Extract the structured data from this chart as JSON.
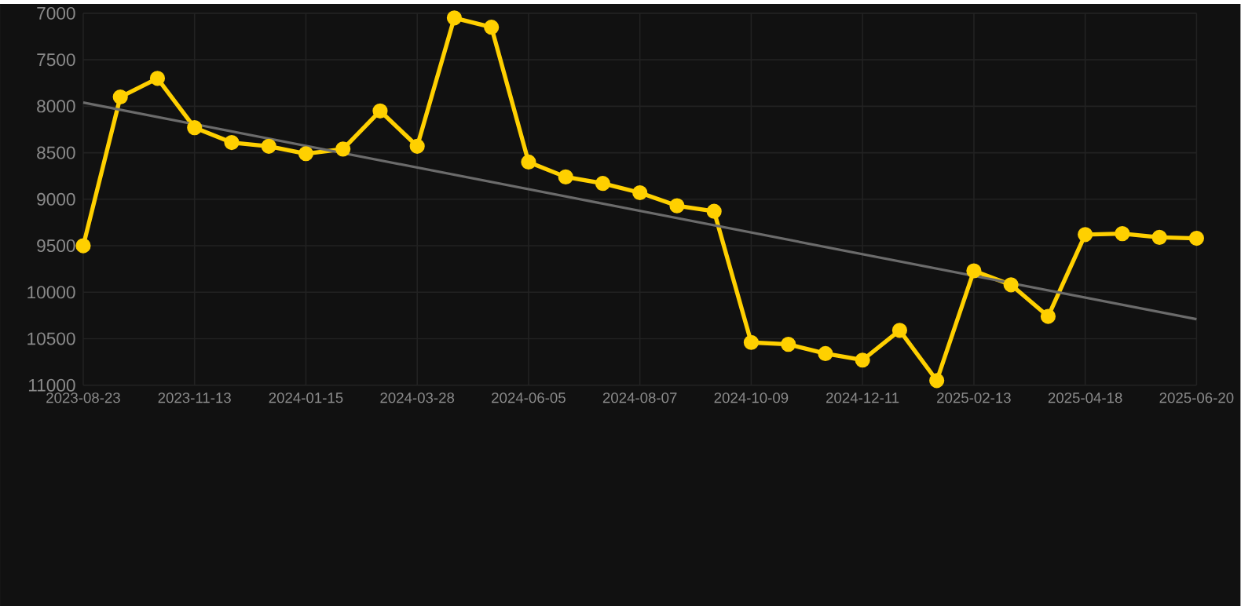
{
  "chart_data": {
    "type": "line",
    "categories": [
      "2023-08-23",
      null,
      null,
      "2023-11-13",
      null,
      null,
      "2024-01-15",
      null,
      null,
      "2024-03-28",
      null,
      null,
      "2024-06-05",
      null,
      null,
      "2024-08-07",
      null,
      null,
      "2024-10-09",
      null,
      null,
      "2024-12-11",
      null,
      null,
      "2025-02-13",
      null,
      null,
      "2025-04-18",
      null,
      null,
      "2025-06-20"
    ],
    "ylim": [
      11000,
      7000
    ],
    "yticks": [
      7000,
      7500,
      8000,
      8500,
      9000,
      9500,
      10000,
      10500,
      11000
    ],
    "grid": true,
    "series": [
      {
        "color": "#ffd000",
        "marker": "circle",
        "values": [
          9500,
          7900,
          7700,
          8230,
          8390,
          8430,
          8510,
          8460,
          8050,
          8430,
          7050,
          7150,
          8600,
          8760,
          8830,
          8930,
          9070,
          9130,
          10540,
          10560,
          10660,
          10730,
          10410,
          10950,
          9770,
          9920,
          10260,
          9380,
          9370,
          9410,
          9420
        ]
      },
      {
        "type": "line",
        "color": "#6b6b6b",
        "marker": "none",
        "values": [
          7960,
          null,
          null,
          null,
          null,
          null,
          null,
          null,
          null,
          null,
          null,
          null,
          null,
          null,
          null,
          null,
          null,
          null,
          null,
          null,
          null,
          null,
          null,
          null,
          null,
          null,
          null,
          null,
          null,
          null,
          10290
        ]
      }
    ]
  }
}
